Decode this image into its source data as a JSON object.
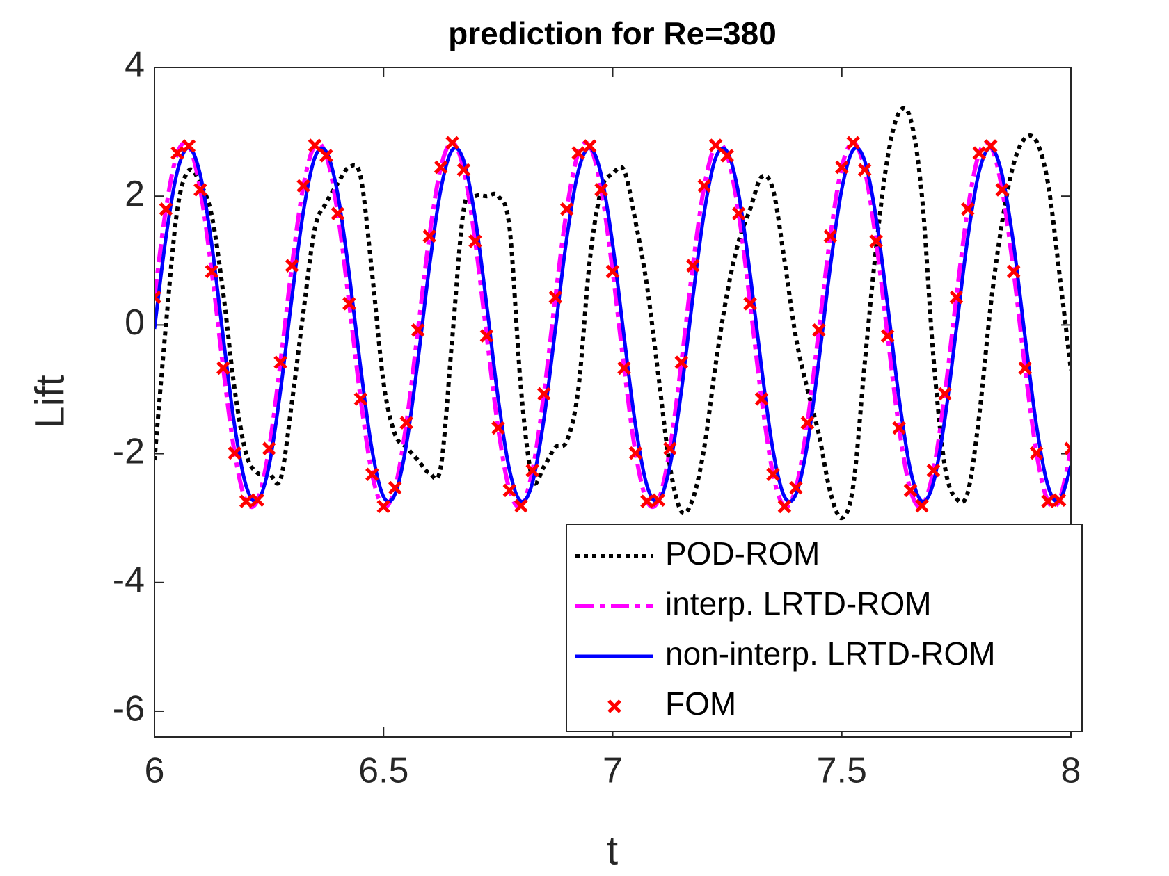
{
  "chart_data": {
    "type": "line",
    "title": "prediction for Re=380",
    "x_label": "t",
    "y_label": "Lift",
    "xlim": [
      6,
      8
    ],
    "ylim": [
      -6.4,
      4
    ],
    "xticks": [
      6,
      6.5,
      7,
      7.5,
      8
    ],
    "yticks": [
      -6,
      -4,
      -2,
      0,
      2,
      4
    ],
    "grid": false,
    "legend": "southeast",
    "x": [
      6,
      6.025,
      6.05,
      6.075,
      6.1,
      6.125,
      6.15,
      6.175,
      6.2,
      6.225,
      6.25,
      6.275,
      6.3,
      6.325,
      6.35,
      6.375,
      6.4,
      6.425,
      6.45,
      6.475,
      6.5,
      6.525,
      6.55,
      6.575,
      6.6,
      6.625,
      6.65,
      6.675,
      6.7,
      6.725,
      6.75,
      6.775,
      6.8,
      6.825,
      6.85,
      6.875,
      6.9,
      6.925,
      6.95,
      6.975,
      7,
      7.025,
      7.05,
      7.075,
      7.1,
      7.125,
      7.15,
      7.175,
      7.2,
      7.225,
      7.25,
      7.275,
      7.3,
      7.325,
      7.35,
      7.375,
      7.4,
      7.425,
      7.45,
      7.475,
      7.5,
      7.525,
      7.55,
      7.575,
      7.6,
      7.625,
      7.65,
      7.675,
      7.7,
      7.725,
      7.75,
      7.775,
      7.8,
      7.825,
      7.85,
      7.875,
      7.9,
      7.925,
      7.95,
      7.975,
      8
    ],
    "series": [
      {
        "name": "POD-ROM",
        "color": "#000000",
        "style": "dotted",
        "values": [
          -2.1,
          0.0,
          1.8,
          2.4,
          2.2,
          1.7,
          0.5,
          -1.0,
          -2.0,
          -2.3,
          -2.3,
          -2.4,
          -1.2,
          0.2,
          1.5,
          1.9,
          2.2,
          2.45,
          2.3,
          0.8,
          -0.9,
          -1.7,
          -1.9,
          -2.1,
          -2.3,
          -2.2,
          -0.2,
          1.8,
          2.0,
          2.0,
          2.0,
          1.5,
          -1.0,
          -2.4,
          -2.2,
          -1.9,
          -1.8,
          -1.0,
          1.0,
          2.1,
          2.35,
          2.4,
          1.6,
          0.6,
          -0.8,
          -2.2,
          -2.9,
          -2.7,
          -1.9,
          -0.6,
          0.5,
          1.3,
          1.8,
          2.3,
          2.1,
          1.0,
          -0.2,
          -1.0,
          -1.7,
          -2.6,
          -3.0,
          -2.5,
          -0.6,
          1.2,
          2.6,
          3.3,
          3.2,
          2.0,
          -0.5,
          -2.2,
          -2.7,
          -2.6,
          -1.4,
          0.3,
          1.6,
          2.5,
          2.9,
          2.85,
          2.2,
          0.8,
          -0.7
        ]
      },
      {
        "name": "interp. LRTD-ROM",
        "color": "#ff00ff",
        "style": "dashdot",
        "values": [
          0.43,
          1.8,
          2.67,
          2.78,
          2.1,
          0.83,
          -0.67,
          -1.99,
          -2.74,
          -2.72,
          -1.92,
          -0.58,
          0.92,
          2.16,
          2.79,
          2.63,
          1.73,
          0.33,
          -1.15,
          -2.32,
          -2.82,
          -2.53,
          -1.52,
          -0.08,
          1.38,
          2.45,
          2.83,
          2.41,
          1.3,
          -0.17,
          -1.6,
          -2.57,
          -2.81,
          -2.26,
          -1.07,
          0.43,
          1.8,
          2.67,
          2.78,
          2.1,
          0.83,
          -0.67,
          -1.99,
          -2.74,
          -2.72,
          -1.92,
          -0.58,
          0.92,
          2.16,
          2.79,
          2.63,
          1.73,
          0.33,
          -1.15,
          -2.32,
          -2.82,
          -2.53,
          -1.52,
          -0.08,
          1.38,
          2.45,
          2.83,
          2.41,
          1.3,
          -0.17,
          -1.6,
          -2.57,
          -2.81,
          -2.26,
          -1.07,
          0.43,
          1.8,
          2.67,
          2.78,
          2.1,
          0.83,
          -0.67,
          -1.99,
          -2.74,
          -2.72,
          -1.92
        ]
      },
      {
        "name": "non-interp. LRTD-ROM",
        "color": "#0000ff",
        "style": "solid",
        "values": [
          -0.06,
          1.36,
          2.39,
          2.75,
          2.33,
          1.25,
          -0.19,
          -1.57,
          -2.5,
          -2.73,
          -2.19,
          -1.02,
          0.43,
          1.76,
          2.6,
          2.69,
          2.03,
          0.79,
          -0.67,
          -1.95,
          -2.67,
          -2.63,
          -1.85,
          -0.55,
          0.91,
          2.11,
          2.72,
          2.55,
          1.66,
          0.31,
          -1.14,
          -2.26,
          -2.74,
          -2.45,
          -1.46,
          -0.06,
          1.36,
          2.39,
          2.75,
          2.33,
          1.25,
          -0.19,
          -1.57,
          -2.5,
          -2.73,
          -2.19,
          -1.02,
          0.43,
          1.76,
          2.6,
          2.69,
          2.03,
          0.79,
          -0.67,
          -1.95,
          -2.67,
          -2.63,
          -1.85,
          -0.55,
          0.91,
          2.11,
          2.72,
          2.55,
          1.66,
          0.31,
          -1.14,
          -2.26,
          -2.74,
          -2.45,
          -1.46,
          -0.06,
          1.36,
          2.39,
          2.75,
          2.33,
          1.25,
          -0.19,
          -1.57,
          -2.5,
          -2.73,
          -2.19
        ]
      },
      {
        "name": "FOM",
        "color": "#ff0000",
        "style": "marker",
        "values": [
          0.43,
          1.8,
          2.67,
          2.78,
          2.1,
          0.83,
          -0.67,
          -1.99,
          -2.74,
          -2.72,
          -1.92,
          -0.58,
          0.92,
          2.16,
          2.79,
          2.63,
          1.73,
          0.33,
          -1.15,
          -2.32,
          -2.82,
          -2.53,
          -1.52,
          -0.08,
          1.38,
          2.45,
          2.83,
          2.41,
          1.3,
          -0.17,
          -1.6,
          -2.57,
          -2.81,
          -2.26,
          -1.07,
          0.43,
          1.8,
          2.67,
          2.78,
          2.1,
          0.83,
          -0.67,
          -1.99,
          -2.74,
          -2.72,
          -1.92,
          -0.58,
          0.92,
          2.16,
          2.79,
          2.63,
          1.73,
          0.33,
          -1.15,
          -2.32,
          -2.82,
          -2.53,
          -1.52,
          -0.08,
          1.38,
          2.45,
          2.83,
          2.41,
          1.3,
          -0.17,
          -1.6,
          -2.57,
          -2.81,
          -2.26,
          -1.07,
          0.43,
          1.8,
          2.67,
          2.78,
          2.1,
          0.83,
          -0.67,
          -1.99,
          -2.74,
          -2.72,
          -1.92
        ]
      }
    ]
  }
}
